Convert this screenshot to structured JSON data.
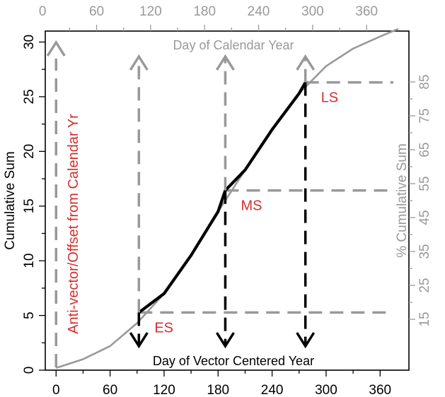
{
  "chart_data": {
    "type": "line",
    "x_bottom": {
      "label": "Day of Vector Centered Year",
      "ticks": [
        "0",
        "60",
        "120",
        "180",
        "240",
        "300",
        "360"
      ],
      "range": [
        -12,
        392
      ]
    },
    "x_top": {
      "label": "Day of Calendar Year",
      "ticks": [
        "0",
        "60",
        "120",
        "180",
        "240",
        "300",
        "360"
      ],
      "offset_days": 15
    },
    "y_left": {
      "label": "Cumulative Sum",
      "ticks": [
        "0",
        "5",
        "10",
        "15",
        "20",
        "25",
        "30"
      ],
      "range": [
        0,
        31
      ]
    },
    "y_right": {
      "label": "% Cumulative Sum",
      "ticks": [
        "15",
        "25",
        "35",
        "45",
        "55",
        "65",
        "75",
        "85"
      ],
      "total": 31
    },
    "series": [
      {
        "name": "",
        "x": [
          0,
          30,
          60,
          90,
          120,
          150,
          180,
          210,
          240,
          270,
          300,
          330,
          360,
          380
        ],
        "y": [
          0.2,
          1.0,
          2.2,
          4.3,
          7.0,
          10.5,
          14.5,
          18.3,
          22.0,
          25.3,
          27.8,
          29.4,
          30.5,
          31.2
        ],
        "color": "#999999"
      },
      {
        "name": "",
        "x": [
          92,
          120,
          150,
          180,
          188,
          210,
          240,
          270,
          277
        ],
        "y": [
          5.27,
          7.0,
          10.5,
          14.5,
          16.43,
          18.3,
          22.0,
          25.3,
          26.31
        ],
        "color": "#000000"
      }
    ],
    "markers": [
      {
        "label": "ES",
        "x": 92,
        "y": 5.27
      },
      {
        "label": "MS",
        "x": 188,
        "y": 16.43
      },
      {
        "label": "LS",
        "x": 277,
        "y": 26.31
      }
    ],
    "annotations": {
      "offset_label": "Anti-vector/Offset from Calendar Yr"
    },
    "colors": {
      "accent_red": "#d03030",
      "grey": "#999999",
      "dark": "#000000"
    },
    "grid": false
  }
}
